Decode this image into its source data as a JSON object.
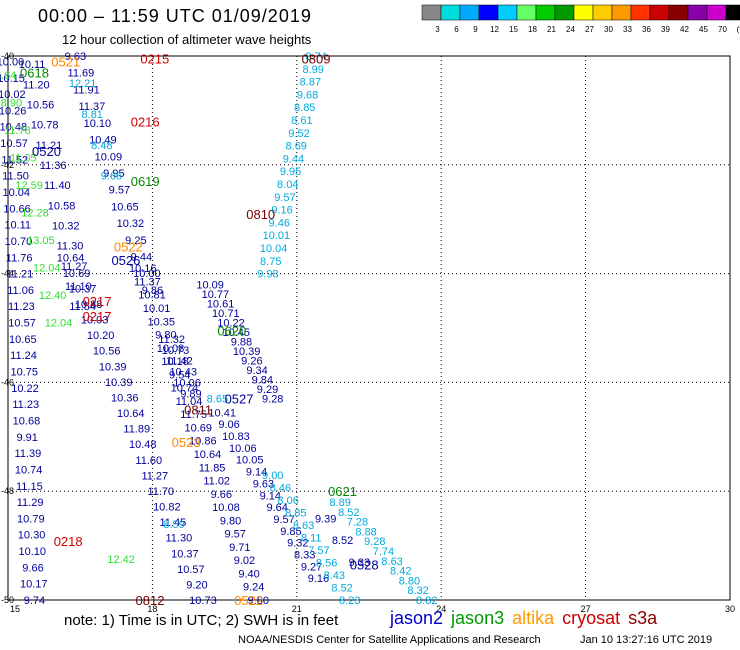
{
  "header": {
    "title": "00:00 – 11:59 UTC 01/09/2019",
    "subtitle": "12 hour collection of altimeter wave heights"
  },
  "color_scale": {
    "labels": [
      "3",
      "6",
      "9",
      "12",
      "15",
      "18",
      "21",
      "24",
      "27",
      "30",
      "33",
      "36",
      "39",
      "42",
      "45",
      "70",
      "(ft)"
    ],
    "colors": [
      "#888888",
      "#00dddd",
      "#00aaff",
      "#0000ff",
      "#00ccff",
      "#66ff66",
      "#00cc00",
      "#009900",
      "#ffff00",
      "#ffcc00",
      "#ff9900",
      "#ff3300",
      "#cc0000",
      "#880000",
      "#8800aa",
      "#cc00cc",
      "#000000"
    ]
  },
  "axes": {
    "x_ticks": [
      "15",
      "18",
      "21",
      "24",
      "27",
      "30"
    ],
    "y_ticks": [
      "-40",
      "-42",
      "-44",
      "-46",
      "-48",
      "-50"
    ]
  },
  "footer": {
    "note": "note:  1) Time is in UTC;  2) SWH is in feet",
    "satellites": [
      {
        "name": "jason2",
        "color": "#0000cc"
      },
      {
        "name": "jason3",
        "color": "#009900"
      },
      {
        "name": "altika",
        "color": "#ff9900"
      },
      {
        "name": "cryosat",
        "color": "#cc0000"
      },
      {
        "name": "s3a",
        "color": "#880000"
      }
    ],
    "credit": "NOAA/NESDIS Center for Satellite Applications and Research",
    "timestamp": "Jan 10 13:27:16 UTC 2019"
  },
  "colors": {
    "navy": "#000099",
    "cyan": "#00aadd",
    "green": "#33dd33",
    "dkgreen": "#008800",
    "orange": "#ff8800",
    "red": "#cc0000",
    "maroon": "#770000",
    "lblue": "#3399ff"
  },
  "time_labels": [
    {
      "text": "0215",
      "lon": 18.05,
      "lat": -40.05,
      "c": "red"
    },
    {
      "text": "0809",
      "lon": 21.4,
      "lat": -40.05,
      "c": "maroon"
    },
    {
      "text": "0521",
      "lon": 16.2,
      "lat": -40.1,
      "c": "orange"
    },
    {
      "text": "0618",
      "lon": 15.55,
      "lat": -40.3,
      "c": "dkgreen"
    },
    {
      "text": "0216",
      "lon": 17.85,
      "lat": -41.2,
      "c": "red"
    },
    {
      "text": "0520",
      "lon": 15.8,
      "lat": -41.75,
      "c": "navy"
    },
    {
      "text": "0619",
      "lon": 17.85,
      "lat": -42.3,
      "c": "dkgreen"
    },
    {
      "text": "0810",
      "lon": 20.25,
      "lat": -42.9,
      "c": "maroon"
    },
    {
      "text": "0522",
      "lon": 17.5,
      "lat": -43.5,
      "c": "orange"
    },
    {
      "text": "0526",
      "lon": 17.45,
      "lat": -43.75,
      "c": "navy"
    },
    {
      "text": "0217",
      "lon": 16.85,
      "lat": -44.5,
      "c": "red"
    },
    {
      "text": "0217",
      "lon": 16.85,
      "lat": -44.78,
      "c": "red"
    },
    {
      "text": "0620",
      "lon": 19.65,
      "lat": -45.05,
      "c": "dkgreen"
    },
    {
      "text": "0527",
      "lon": 19.8,
      "lat": -46.3,
      "c": "navy"
    },
    {
      "text": "0811",
      "lon": 18.95,
      "lat": -46.5,
      "c": "maroon"
    },
    {
      "text": "0523",
      "lon": 18.7,
      "lat": -47.1,
      "c": "orange"
    },
    {
      "text": "0621",
      "lon": 21.95,
      "lat": -48.0,
      "c": "dkgreen"
    },
    {
      "text": "0218",
      "lon": 16.25,
      "lat": -48.92,
      "c": "red"
    },
    {
      "text": "0528",
      "lon": 22.4,
      "lat": -49.35,
      "c": "navy"
    },
    {
      "text": "0812",
      "lon": 17.95,
      "lat": -50.0,
      "c": "maroon"
    },
    {
      "text": "0522",
      "lon": 20.0,
      "lat": -50.0,
      "c": "orange"
    }
  ],
  "tracks": [
    {
      "c": "navy",
      "lon0": 15.05,
      "lat0": -40.1,
      "lon1": 15.55,
      "lat1": -50.0,
      "values": [
        "10.00",
        "10.15",
        "10.02",
        "10.26",
        "10.48",
        "10.57",
        "11.52",
        "11.50",
        "10.04",
        "10.66",
        "10.11",
        "10.70",
        "11.76",
        "11.21",
        "11.06",
        "11.23",
        "10.57",
        "10.65",
        "11.24",
        "10.75",
        "10.22",
        "11.23",
        "10.68",
        "9.91",
        "11.39",
        "10.74",
        "11.15",
        "11.29",
        "10.79",
        "10.30",
        "10.10",
        "9.66",
        "10.17",
        "9.74"
      ]
    },
    {
      "c": "green",
      "lon0": 14.95,
      "lat0": -40.35,
      "lon1": 16.05,
      "lat1": -44.9,
      "values": [
        "8.64",
        "8.90",
        "11.78",
        "11.05",
        "12.59",
        "12.28",
        "13.05",
        "12.04",
        "12.40",
        "12.04"
      ]
    },
    {
      "c": "navy",
      "lon0": 15.5,
      "lat0": -40.15,
      "lon1": 16.55,
      "lat1": -44.6,
      "values": [
        "10.11",
        "11.20",
        "10.56",
        "10.78",
        "11.21",
        "11.36",
        "11.40",
        "10.58",
        "10.32",
        "11.30",
        "11.27",
        "11.10",
        "11.54"
      ]
    },
    {
      "c": "navy",
      "lon0": 16.4,
      "lat0": -40.0,
      "lon1": 18.0,
      "lat1": -44.3,
      "values": [
        "9.63",
        "11.69",
        "11.91",
        "11.37",
        "10.10",
        "10.49",
        "10.09",
        "9.95",
        "9.57",
        "10.65",
        "10.32",
        "9.25",
        "9.44",
        "10.00",
        "9.86"
      ]
    },
    {
      "c": "cyan",
      "lon0": 16.55,
      "lat0": -40.5,
      "lon1": 17.15,
      "lat1": -42.2,
      "values": [
        "12.21",
        "8.81",
        "8.48",
        "9.66"
      ]
    },
    {
      "c": "navy",
      "lon0": 16.3,
      "lat0": -43.7,
      "lon1": 19.05,
      "lat1": -50.0,
      "values": [
        "10.64",
        "10.69",
        "10.37",
        "10.88",
        "10.03",
        "10.20",
        "10.56",
        "10.39",
        "10.39",
        "10.36",
        "10.64",
        "11.89",
        "10.48",
        "11.60",
        "11.27",
        "11.70",
        "10.82",
        "11.45",
        "11.30",
        "10.37",
        "10.57",
        "9.20",
        "10.73"
      ]
    },
    {
      "c": "green",
      "lon0": 17.35,
      "lat0": -49.25,
      "lon1": 17.35,
      "lat1": -49.25,
      "values": [
        "12.42"
      ]
    },
    {
      "c": "navy",
      "lon0": 17.8,
      "lat0": -43.9,
      "lon1": 20.2,
      "lat1": -50.0,
      "values": [
        "10.16",
        "11.37",
        "10.81",
        "10.01",
        "10.35",
        "9.80",
        "10.08",
        "10.18",
        "9.54",
        "10.74",
        "11.04",
        "11.75",
        "10.69",
        "10.86",
        "10.64",
        "11.85",
        "11.02",
        "9.66",
        "10.08",
        "9.80",
        "9.57",
        "9.71",
        "9.02",
        "9.40",
        "9.24",
        "9.80"
      ]
    },
    {
      "c": "navy",
      "lon0": 19.2,
      "lat0": -44.2,
      "lon1": 20.5,
      "lat1": -46.3,
      "values": [
        "10.09",
        "10.77",
        "10.61",
        "10.71",
        "10.22",
        "10.45",
        "9.88",
        "10.39",
        "9.26",
        "9.34",
        "9.84",
        "9.29",
        "9.28"
      ]
    },
    {
      "c": "navy",
      "lon0": 18.4,
      "lat0": -45.2,
      "lon1": 18.8,
      "lat1": -46.2,
      "values": [
        "11.32",
        "10.73",
        "11.42",
        "10.43",
        "10.06",
        "9.89"
      ]
    },
    {
      "c": "cyan",
      "lon0": 18.45,
      "lat0": -48.6,
      "lon1": 18.6,
      "lat1": -49.7,
      "values": [
        "8.59"
      ]
    },
    {
      "c": "cyan",
      "lon0": 21.4,
      "lat0": -40.0,
      "lon1": 20.4,
      "lat1": -44.0,
      "values": [
        "8.74",
        "8.99",
        "8.87",
        "9.68",
        "8.85",
        "8.61",
        "9.52",
        "8.69",
        "9.44",
        "9.95",
        "8.04",
        "9.57",
        "9.16",
        "9.46",
        "10.01",
        "10.04",
        "8.75",
        "9.98"
      ]
    },
    {
      "c": "cyan",
      "lon0": 19.35,
      "lat0": -46.3,
      "lon1": 19.35,
      "lat1": -46.3,
      "values": [
        "8.65"
      ]
    },
    {
      "c": "navy",
      "lon0": 19.45,
      "lat0": -46.55,
      "lon1": 21.45,
      "lat1": -49.6,
      "values": [
        "10.41",
        "9.06",
        "10.83",
        "10.06",
        "10.05",
        "9.14",
        "9.63",
        "9.14",
        "9.64",
        "9.57",
        "9.85",
        "9.32",
        "8.33",
        "9.27",
        "9.16"
      ]
    },
    {
      "c": "cyan",
      "lon0": 20.5,
      "lat0": -47.7,
      "lon1": 22.1,
      "lat1": -50.0,
      "values": [
        "9.00",
        "8.46",
        "8.06",
        "8.85",
        "8.63",
        "8.11",
        "7.57",
        "8.56",
        "8.43",
        "8.52",
        "8.23"
      ]
    },
    {
      "c": "navy",
      "lon0": 21.6,
      "lat0": -48.5,
      "lon1": 22.3,
      "lat1": -49.3,
      "values": [
        "9.39",
        "8.52",
        "9.33"
      ]
    },
    {
      "c": "cyan",
      "lon0": 21.9,
      "lat0": -48.2,
      "lon1": 23.7,
      "lat1": -50.0,
      "values": [
        "8.89",
        "8.52",
        "7.28",
        "8.88",
        "9.28",
        "7.74",
        "8.63",
        "8.42",
        "8.80",
        "8.32",
        "8.82"
      ]
    }
  ]
}
